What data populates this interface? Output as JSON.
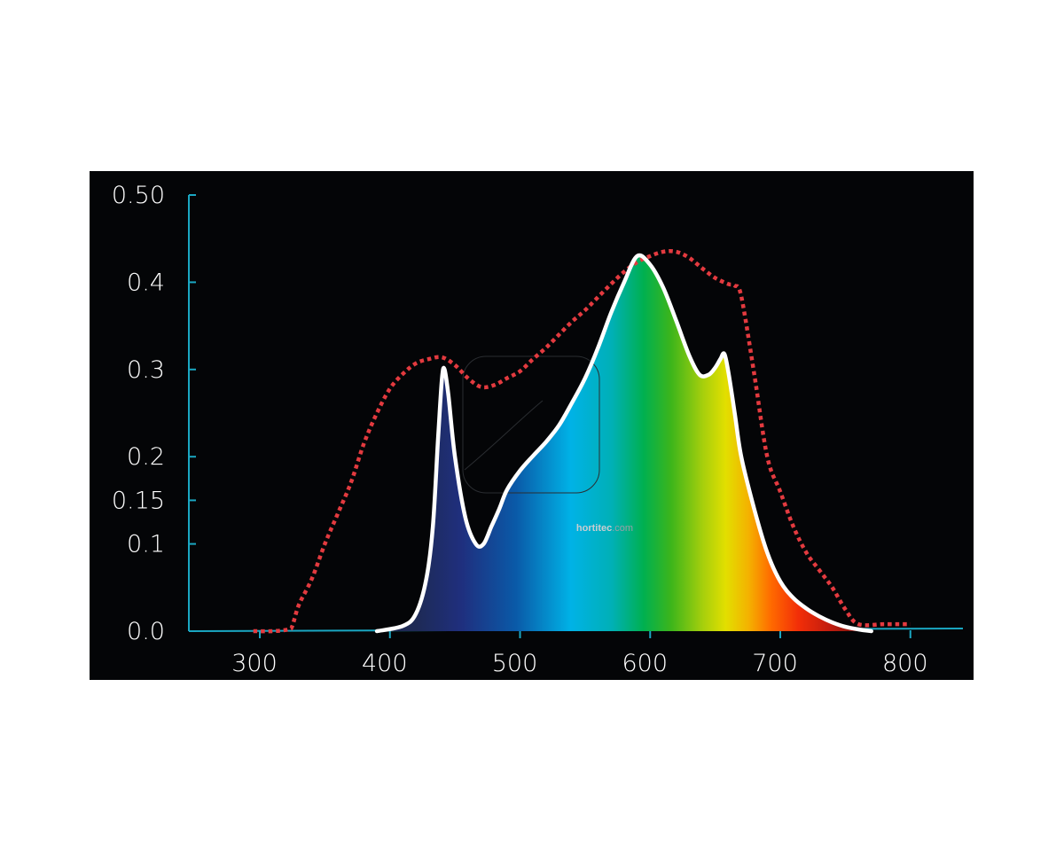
{
  "chart_data": {
    "type": "area",
    "title": "",
    "xlabel": "",
    "ylabel": "",
    "xlim": [
      240,
      840
    ],
    "ylim": [
      0,
      0.5
    ],
    "grid": false,
    "x_ticks": [
      300,
      400,
      500,
      600,
      700,
      800
    ],
    "x_tick_labels": [
      "300",
      "400",
      "500",
      "600",
      "700",
      "800"
    ],
    "y_ticks": [
      0.0,
      0.1,
      0.15,
      0.2,
      0.3,
      0.4,
      0.5
    ],
    "y_tick_labels": [
      "0.0",
      "0.1",
      "0.15",
      "0.2",
      "0.3",
      "0.4",
      "0.50"
    ],
    "series": [
      {
        "style": "solid-white-outline-spectral-fill",
        "x": [
          390,
          410,
          420,
          428,
          433,
          437,
          440,
          442,
          445,
          450,
          458,
          466,
          472,
          478,
          484,
          490,
          500,
          510,
          520,
          530,
          540,
          550,
          560,
          570,
          580,
          590,
          600,
          610,
          620,
          630,
          638,
          645,
          650,
          654,
          657,
          660,
          665,
          670,
          680,
          690,
          700,
          710,
          720,
          730,
          740,
          750,
          760,
          770
        ],
        "y": [
          0.0,
          0.006,
          0.02,
          0.06,
          0.12,
          0.22,
          0.29,
          0.3,
          0.27,
          0.2,
          0.13,
          0.1,
          0.1,
          0.12,
          0.14,
          0.162,
          0.184,
          0.201,
          0.217,
          0.236,
          0.262,
          0.29,
          0.325,
          0.365,
          0.4,
          0.43,
          0.42,
          0.394,
          0.356,
          0.316,
          0.294,
          0.294,
          0.302,
          0.312,
          0.318,
          0.298,
          0.25,
          0.2,
          0.14,
          0.09,
          0.057,
          0.038,
          0.026,
          0.017,
          0.01,
          0.005,
          0.002,
          0.0
        ]
      },
      {
        "style": "red-dotted",
        "x": [
          295,
          310,
          322,
          325,
          330,
          340,
          350,
          360,
          370,
          380,
          390,
          400,
          410,
          420,
          430,
          440,
          450,
          460,
          470,
          480,
          490,
          500,
          510,
          520,
          530,
          540,
          550,
          560,
          570,
          580,
          590,
          600,
          610,
          620,
          630,
          640,
          650,
          660,
          665,
          670,
          680,
          690,
          700,
          710,
          720,
          730,
          740,
          750,
          760,
          780,
          800
        ],
        "y": [
          0.0,
          0.0,
          0.002,
          0.006,
          0.03,
          0.06,
          0.1,
          0.135,
          0.17,
          0.215,
          0.25,
          0.278,
          0.295,
          0.307,
          0.312,
          0.314,
          0.305,
          0.29,
          0.28,
          0.282,
          0.29,
          0.298,
          0.312,
          0.325,
          0.34,
          0.355,
          0.368,
          0.383,
          0.398,
          0.412,
          0.423,
          0.43,
          0.435,
          0.435,
          0.428,
          0.416,
          0.405,
          0.398,
          0.396,
          0.384,
          0.295,
          0.2,
          0.16,
          0.12,
          0.09,
          0.07,
          0.05,
          0.025,
          0.008,
          0.008,
          0.008
        ]
      }
    ],
    "annotations": [
      "hortitec",
      ".com"
    ],
    "colors": {
      "background": "#040507",
      "axis": "#1aa7c2",
      "spd_outline": "#ffffff",
      "reference_curve": "#e33a3f"
    }
  }
}
